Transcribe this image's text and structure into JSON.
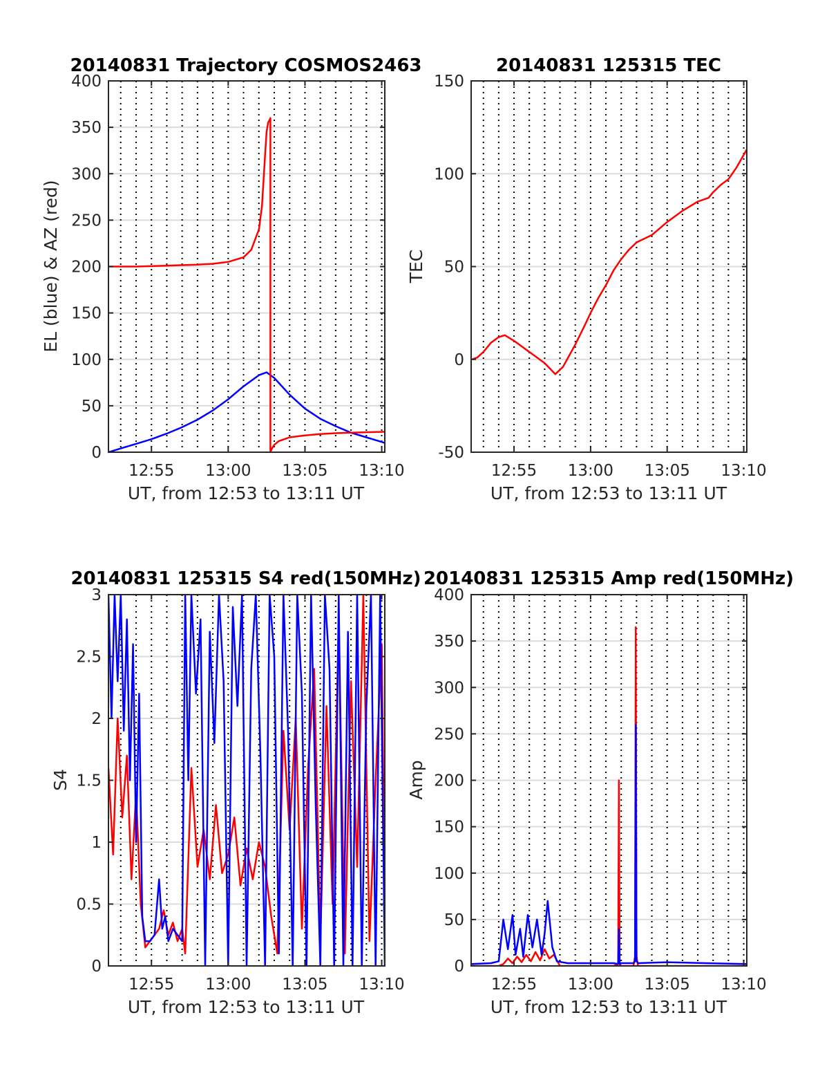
{
  "colors": {
    "el": "#0000ff",
    "az": "#ff0000",
    "axis": "#262626",
    "grid": "#dcdcdc"
  },
  "chart_data": [
    {
      "id": "traj",
      "type": "line",
      "title": "20140831 Trajectory COSMOS2463",
      "xlabel": "UT, from 12:53 to 13:11 UT",
      "ylabel": "EL (blue) & AZ (red)",
      "xlim": [
        12.2,
        30.2
      ],
      "ylim": [
        0,
        400
      ],
      "xticks": [
        15,
        20,
        25,
        30
      ],
      "xticklabels": [
        "12:55",
        "13:00",
        "13:05",
        "13:10"
      ],
      "yticks": [
        0,
        50,
        100,
        150,
        200,
        250,
        300,
        350,
        400
      ],
      "yticklabels": [
        "0",
        "50",
        "100",
        "150",
        "200",
        "250",
        "300",
        "350",
        "400"
      ],
      "vgrid_minutes": [
        13,
        14,
        15,
        16,
        17,
        18,
        19,
        20,
        21,
        22,
        23,
        24,
        25,
        26,
        27,
        28,
        29,
        30
      ],
      "series": [
        {
          "name": "EL",
          "color": "#0000ff",
          "x": [
            12.2,
            13,
            14,
            15,
            16,
            17,
            18,
            19,
            20,
            21,
            22,
            22.5,
            23,
            24,
            25,
            26,
            27,
            28,
            29,
            30,
            30.2
          ],
          "y": [
            0,
            4,
            9,
            14,
            20,
            27,
            35,
            45,
            57,
            71,
            83,
            86,
            80,
            62,
            47,
            36,
            28,
            21,
            16,
            11,
            10
          ]
        },
        {
          "name": "AZ",
          "color": "#ff0000",
          "x": [
            12.2,
            14,
            16,
            18,
            19,
            20,
            21,
            21.5,
            22,
            22.2,
            22.4,
            22.5,
            22.6,
            22.7,
            22.75,
            22.75,
            22.85,
            23,
            23.3,
            24,
            25,
            26,
            27,
            28,
            29,
            30.2
          ],
          "y": [
            200,
            200,
            201,
            202,
            203,
            205,
            210,
            218,
            240,
            265,
            320,
            345,
            355,
            358,
            360,
            0,
            4,
            8,
            12,
            16,
            18,
            19.5,
            20.5,
            21,
            21.5,
            22
          ]
        }
      ]
    },
    {
      "id": "tec",
      "type": "line",
      "title": "20140831 125315 TEC",
      "xlabel": "UT, from 12:53 to 13:11 UT",
      "ylabel": "TEC",
      "xlim": [
        12.2,
        30.2
      ],
      "ylim": [
        -50,
        150
      ],
      "xticks": [
        15,
        20,
        25,
        30
      ],
      "xticklabels": [
        "12:55",
        "13:00",
        "13:05",
        "13:10"
      ],
      "yticks": [
        -50,
        0,
        50,
        100,
        150
      ],
      "yticklabels": [
        "-50",
        "0",
        "50",
        "100",
        "150"
      ],
      "vgrid_minutes": [
        13,
        14,
        15,
        16,
        17,
        18,
        19,
        20,
        21,
        22,
        23,
        24,
        25,
        26,
        27,
        28,
        29,
        30
      ],
      "series": [
        {
          "name": "TEC",
          "color": "#ff0000",
          "x": [
            12.25,
            12.6,
            13,
            13.5,
            14,
            14.4,
            15,
            16,
            17,
            17.7,
            18.2,
            19,
            19.6,
            20,
            20.5,
            21,
            21.5,
            22,
            22.5,
            23,
            24,
            25,
            26,
            27,
            27.7,
            28,
            28.5,
            29,
            29.5,
            30.2
          ],
          "y": [
            0,
            1,
            4,
            9,
            12,
            13,
            10,
            4,
            -2,
            -8,
            -4,
            8,
            18,
            25,
            33,
            40,
            48,
            54,
            59,
            63,
            67,
            74,
            80,
            85,
            87,
            90,
            94,
            97,
            103,
            113
          ]
        }
      ]
    },
    {
      "id": "s4",
      "type": "line",
      "title": "20140831 125315 S4 red(150MHz)",
      "xlabel": "UT, from 12:53 to 13:11 UT",
      "ylabel": "S4",
      "xlim": [
        12.2,
        30.2
      ],
      "ylim": [
        0,
        3
      ],
      "xticks": [
        15,
        20,
        25,
        30
      ],
      "xticklabels": [
        "12:55",
        "13:00",
        "13:05",
        "13:10"
      ],
      "yticks": [
        0,
        0.5,
        1,
        1.5,
        2,
        2.5,
        3
      ],
      "yticklabels": [
        "0",
        "0.5",
        "1",
        "1.5",
        "2",
        "2.5",
        "3"
      ],
      "vgrid_minutes": [
        13,
        14,
        15,
        16,
        17,
        18,
        19,
        20,
        21,
        22,
        23,
        24,
        25,
        26,
        27,
        28,
        29,
        30
      ],
      "series": [
        {
          "name": "S4 red (150MHz)",
          "color": "#ff0000",
          "x": [
            12.2,
            12.5,
            12.8,
            13.1,
            13.4,
            13.7,
            14.0,
            14.3,
            14.6,
            14.9,
            15.2,
            15.5,
            15.8,
            16.1,
            16.4,
            16.7,
            17.0,
            17.2,
            17.6,
            18.0,
            18.4,
            18.8,
            19.2,
            19.6,
            20.0,
            20.4,
            20.8,
            21.2,
            21.6,
            22.0,
            22.4,
            22.8,
            23.2,
            23.6,
            24.0,
            24.4,
            24.8,
            25.2,
            25.6,
            26.0,
            26.4,
            26.8,
            27.2,
            27.6,
            28.0,
            28.4,
            28.8,
            29.2,
            29.6,
            30.0,
            30.2
          ],
          "y": [
            1.6,
            0.9,
            2.0,
            1.2,
            1.7,
            0.7,
            1.4,
            0.5,
            0.15,
            0.2,
            0.25,
            0.3,
            0.45,
            0.25,
            0.35,
            0.2,
            0.3,
            0.1,
            1.6,
            0.8,
            1.1,
            0.7,
            1.3,
            0.75,
            0.9,
            1.2,
            0.65,
            0.95,
            0.7,
            1.0,
            0.8,
            0.4,
            0.1,
            1.9,
            1.1,
            2.0,
            0.3,
            1.6,
            2.4,
            0.2,
            2.1,
            0.5,
            2.8,
            0.1,
            2.3,
            0.8,
            3.0,
            0.2,
            1.5,
            2.6,
            0.4
          ]
        },
        {
          "name": "S4 blue",
          "color": "#0000ff",
          "x": [
            12.2,
            12.4,
            12.6,
            12.8,
            13.0,
            13.2,
            13.4,
            13.6,
            13.8,
            14.0,
            14.2,
            14.4,
            14.6,
            14.9,
            15.2,
            15.5,
            15.7,
            15.9,
            16.1,
            16.4,
            16.7,
            17.0,
            17.2,
            17.4,
            17.6,
            17.9,
            18.2,
            18.5,
            18.8,
            19.1,
            19.4,
            19.7,
            20.0,
            20.3,
            20.6,
            20.9,
            21.2,
            21.5,
            21.8,
            22.1,
            22.4,
            22.7,
            23.0,
            23.3,
            23.6,
            23.9,
            24.2,
            24.5,
            24.8,
            25.1,
            25.4,
            25.7,
            26.0,
            26.3,
            26.6,
            26.9,
            27.2,
            27.5,
            27.8,
            28.1,
            28.4,
            28.7,
            29.0,
            29.3,
            29.6,
            29.9,
            30.2
          ],
          "y": [
            3.0,
            2.0,
            3.0,
            2.3,
            3.0,
            1.9,
            2.8,
            1.5,
            2.6,
            1.0,
            2.2,
            0.4,
            0.2,
            0.2,
            0.25,
            0.7,
            0.3,
            0.4,
            0.2,
            0.3,
            0.25,
            0.2,
            3.0,
            1.5,
            3.0,
            2.2,
            2.8,
            0.0,
            2.7,
            1.8,
            3.0,
            2.3,
            0.0,
            2.9,
            2.1,
            3.0,
            0.0,
            2.4,
            3.0,
            1.7,
            0.0,
            3.0,
            2.5,
            0.1,
            3.0,
            1.9,
            0.0,
            3.0,
            2.2,
            0.0,
            3.0,
            1.3,
            0.0,
            3.0,
            2.4,
            0.0,
            3.0,
            0.0,
            2.7,
            0.0,
            3.0,
            0.0,
            2.1,
            3.0,
            0.0,
            3.0,
            0.0
          ]
        }
      ]
    },
    {
      "id": "amp",
      "type": "line",
      "title": "20140831 125315 Amp red(150MHz)",
      "xlabel": "UT, from 12:53 to 13:11 UT",
      "ylabel": "Amp",
      "xlim": [
        12.2,
        30.2
      ],
      "ylim": [
        0,
        400
      ],
      "xticks": [
        15,
        20,
        25,
        30
      ],
      "xticklabels": [
        "12:55",
        "13:00",
        "13:05",
        "13:10"
      ],
      "yticks": [
        0,
        50,
        100,
        150,
        200,
        250,
        300,
        350,
        400
      ],
      "yticklabels": [
        "0",
        "50",
        "100",
        "150",
        "200",
        "250",
        "300",
        "350",
        "400"
      ],
      "vgrid_minutes": [
        13,
        14,
        15,
        16,
        17,
        18,
        19,
        20,
        21,
        22,
        23,
        24,
        25,
        26,
        27,
        28,
        29,
        30
      ],
      "series": [
        {
          "name": "Amp red (150MHz)",
          "color": "#ff0000",
          "x": [
            12.2,
            14.0,
            14.3,
            14.6,
            14.9,
            15.2,
            15.5,
            15.8,
            16.1,
            16.4,
            16.7,
            17.0,
            17.3,
            17.6,
            18.0,
            21.5,
            21.8,
            21.85,
            21.9,
            22.0,
            22.8,
            22.9,
            22.95,
            23.0,
            23.1,
            30.2
          ],
          "y": [
            0,
            0,
            2,
            8,
            3,
            10,
            4,
            12,
            5,
            15,
            6,
            18,
            8,
            12,
            0,
            0,
            2,
            200,
            2,
            0,
            0,
            10,
            365,
            10,
            0,
            0
          ]
        },
        {
          "name": "Amp blue",
          "color": "#0000ff",
          "x": [
            12.2,
            13.5,
            14.0,
            14.3,
            14.6,
            14.9,
            15.1,
            15.4,
            15.6,
            15.9,
            16.2,
            16.5,
            16.8,
            17.0,
            17.2,
            17.5,
            17.8,
            18.5,
            21.5,
            21.8,
            21.85,
            21.9,
            22.0,
            22.8,
            22.9,
            22.95,
            23.0,
            23.1,
            25,
            27.5,
            30.2
          ],
          "y": [
            2,
            3,
            5,
            50,
            18,
            55,
            12,
            40,
            10,
            55,
            20,
            50,
            12,
            35,
            70,
            20,
            5,
            3,
            3,
            2,
            40,
            2,
            3,
            3,
            5,
            260,
            5,
            3,
            4,
            3,
            2
          ]
        }
      ]
    }
  ]
}
